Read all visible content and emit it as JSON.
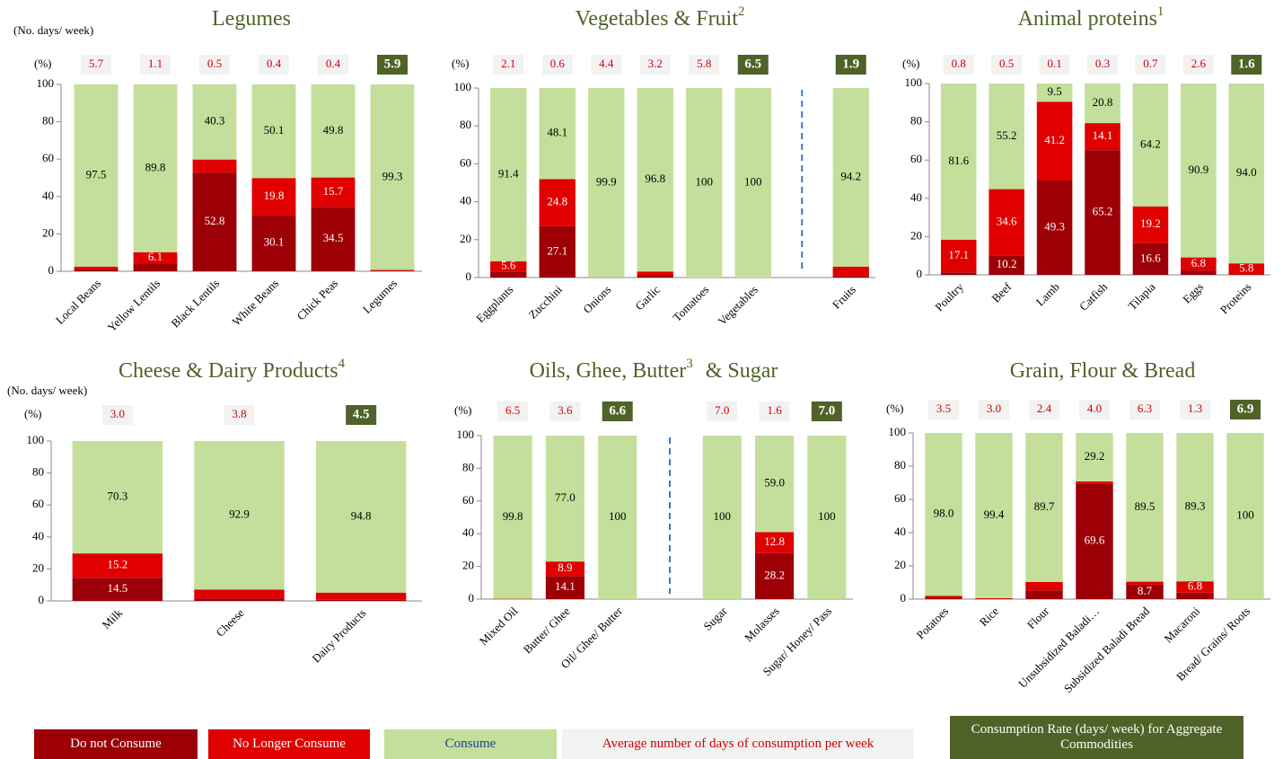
{
  "chart_data": [
    {
      "type": "stacked-bar",
      "title": "Legumes",
      "days_axis_label": "(No. days/ week)",
      "y_label": "(%)",
      "categories": [
        "Local Beans",
        "Yellow Lentils",
        "Black Lentils",
        "White Beans",
        "Chick Peas",
        "Legumes"
      ],
      "days": [
        "5.7",
        "1.1",
        "0.5",
        "0.4",
        "0.4",
        "5.9"
      ],
      "aggregate": [
        false,
        false,
        false,
        false,
        false,
        true
      ],
      "series": [
        {
          "values": [
            1.0,
            4.1,
            52.8,
            30.1,
            34.5,
            0.3
          ],
          "value_labels": [
            null,
            null,
            "52.8",
            "30.1",
            "34.5",
            null
          ]
        },
        {
          "values": [
            1.5,
            6.1,
            7.0,
            19.8,
            15.7,
            0.4
          ],
          "value_labels": [
            null,
            "6.1",
            null,
            "19.8",
            "15.7",
            null
          ]
        },
        {
          "values": [
            97.5,
            89.8,
            40.3,
            50.1,
            49.8,
            99.3
          ],
          "value_labels": [
            "97.5",
            "89.8",
            "40.3",
            "50.1",
            "49.8",
            "99.3"
          ]
        }
      ],
      "ylim": [
        0,
        100
      ],
      "yticks": [
        0,
        20,
        40,
        60,
        80,
        100
      ]
    },
    {
      "type": "stacked-bar",
      "title": "Vegetables & Fruit",
      "title_sup": "2",
      "y_label": "(%)",
      "categories": [
        "Eggplants",
        "Zucchini",
        "Onions",
        "Garlic",
        "Tomatoes",
        "Vegetables",
        null,
        "Fruits"
      ],
      "days": [
        "2.1",
        "0.6",
        "4.4",
        "3.2",
        "5.8",
        "6.5",
        null,
        "1.9"
      ],
      "aggregate": [
        false,
        false,
        false,
        false,
        false,
        true,
        false,
        true
      ],
      "series": [
        {
          "values": [
            3.0,
            27.1,
            0,
            1.2,
            0,
            0,
            null,
            0.8
          ],
          "value_labels": [
            null,
            "27.1",
            null,
            null,
            null,
            null,
            null,
            null
          ]
        },
        {
          "values": [
            5.6,
            24.8,
            0.1,
            2.0,
            0,
            0,
            null,
            5.0
          ],
          "value_labels": [
            "5.6",
            "24.8",
            null,
            null,
            null,
            null,
            null,
            null
          ]
        },
        {
          "values": [
            91.4,
            48.1,
            99.9,
            96.8,
            100,
            100,
            null,
            94.2
          ],
          "value_labels": [
            "91.4",
            "48.1",
            "99.9",
            "96.8",
            "100",
            "100",
            null,
            "94.2"
          ]
        }
      ],
      "ylim": [
        0,
        100
      ],
      "yticks": [
        0,
        20,
        40,
        60,
        80,
        100
      ]
    },
    {
      "type": "stacked-bar",
      "title": "Animal proteins",
      "title_sup": "1",
      "y_label": "(%)",
      "categories": [
        "Poultry",
        "Beef",
        "Lamb",
        "Catfish",
        "Tilapia",
        "Eggs",
        "Proteins"
      ],
      "days": [
        "0.8",
        "0.5",
        "0.1",
        "0.3",
        "0.7",
        "2.6",
        "1.6"
      ],
      "aggregate": [
        false,
        false,
        false,
        false,
        false,
        false,
        true
      ],
      "series": [
        {
          "values": [
            1.3,
            10.2,
            49.3,
            65.2,
            16.6,
            2.3,
            0.2
          ],
          "value_labels": [
            null,
            "10.2",
            "49.3",
            "65.2",
            "16.6",
            null,
            null
          ]
        },
        {
          "values": [
            17.1,
            34.6,
            41.2,
            14.1,
            19.2,
            6.8,
            5.8
          ],
          "value_labels": [
            "17.1",
            "34.6",
            "41.2",
            "14.1",
            "19.2",
            "6.8",
            "5.8"
          ]
        },
        {
          "values": [
            81.6,
            55.2,
            9.5,
            20.8,
            64.2,
            90.9,
            94.0
          ],
          "value_labels": [
            "81.6",
            "55.2",
            "9.5",
            "20.8",
            "64.2",
            "90.9",
            "94.0"
          ]
        }
      ],
      "ylim": [
        0,
        100
      ],
      "yticks": [
        0,
        20,
        40,
        60,
        80,
        100
      ]
    },
    {
      "type": "stacked-bar",
      "title": "Cheese & Dairy Products",
      "title_sup": "4",
      "days_axis_label": "(No. days/ week)",
      "y_label": "(%)",
      "categories": [
        "Milk",
        "Cheese",
        "Dairy Products"
      ],
      "days": [
        "3.0",
        "3.8",
        "4.5"
      ],
      "aggregate": [
        false,
        false,
        true
      ],
      "series": [
        {
          "values": [
            14.5,
            1.6,
            0.7
          ],
          "value_labels": [
            "14.5",
            null,
            null
          ]
        },
        {
          "values": [
            15.2,
            5.5,
            4.5
          ],
          "value_labels": [
            "15.2",
            null,
            null
          ]
        },
        {
          "values": [
            70.3,
            92.9,
            94.8
          ],
          "value_labels": [
            "70.3",
            "92.9",
            "94.8"
          ]
        }
      ],
      "ylim": [
        0,
        100
      ],
      "yticks": [
        0,
        20,
        40,
        60,
        80,
        100
      ]
    },
    {
      "type": "stacked-bar",
      "title": "Oils, Ghee, Butter",
      "title_sup": "3",
      "title_suffix": "&  Sugar",
      "y_label": "(%)",
      "categories": [
        "Mixed Oil",
        "Butter/ Ghee",
        "Oil/ Ghee/ Butter",
        null,
        "Sugar",
        "Molasses",
        "Sugar/ Honey/ Pass"
      ],
      "days": [
        "6.5",
        "3.6",
        "6.6",
        null,
        "7.0",
        "1.6",
        "7.0"
      ],
      "aggregate": [
        false,
        false,
        true,
        false,
        false,
        false,
        true
      ],
      "series": [
        {
          "values": [
            0,
            14.1,
            0,
            null,
            0,
            28.2,
            0
          ],
          "value_labels": [
            null,
            "14.1",
            null,
            null,
            null,
            "28.2",
            null
          ]
        },
        {
          "values": [
            0.2,
            8.9,
            0,
            null,
            0,
            12.8,
            0
          ],
          "value_labels": [
            null,
            "8.9",
            null,
            null,
            null,
            "12.8",
            null
          ]
        },
        {
          "values": [
            99.8,
            77.0,
            100,
            null,
            100,
            59.0,
            100
          ],
          "value_labels": [
            "99.8",
            "77.0",
            "100",
            null,
            "100",
            "59.0",
            "100"
          ]
        }
      ],
      "ylim": [
        0,
        100
      ],
      "yticks": [
        0,
        20,
        40,
        60,
        80,
        100
      ]
    },
    {
      "type": "stacked-bar",
      "title": "Grain, Flour & Bread",
      "y_label": "(%)",
      "categories": [
        "Potatoes",
        "Rice",
        "Flour",
        "Unsubsidized Baladi…",
        "Subsidized Baladi Bread",
        "Macaroni",
        "Bread/ Grains/ Roots"
      ],
      "days": [
        "3.5",
        "3.0",
        "2.4",
        "4.0",
        "6.3",
        "1.3",
        "6.9"
      ],
      "aggregate": [
        false,
        false,
        false,
        false,
        false,
        false,
        true
      ],
      "series": [
        {
          "values": [
            0.8,
            0.2,
            5.3,
            69.6,
            8.7,
            3.9,
            0
          ],
          "value_labels": [
            null,
            null,
            null,
            "69.6",
            "8.7",
            null,
            null
          ]
        },
        {
          "values": [
            1.2,
            0.4,
            5.0,
            1.2,
            1.8,
            6.8,
            0
          ],
          "value_labels": [
            null,
            null,
            null,
            null,
            null,
            "6.8",
            null
          ]
        },
        {
          "values": [
            98.0,
            99.4,
            89.7,
            29.2,
            89.5,
            89.3,
            100
          ],
          "value_labels": [
            "98.0",
            "99.4",
            "89.7",
            "29.2",
            "89.5",
            "89.3",
            "100"
          ]
        }
      ],
      "ylim": [
        0,
        100
      ],
      "yticks": [
        0,
        20,
        40,
        60,
        80,
        100
      ]
    }
  ],
  "legend": [
    {
      "name": "Do not Consume",
      "color": "#9c0006",
      "text_color": "#ffffff"
    },
    {
      "name": "No Longer Consume",
      "color": "#e00000",
      "text_color": "#ffffff"
    },
    {
      "name": "Consume",
      "color": "#c3df9b",
      "text_color": "#1f3f8f"
    },
    {
      "name": "Average number of days of consumption per week",
      "color": "#f2f2f2",
      "text_color": "#d00000"
    },
    {
      "name": "Consumption Rate (days/ week) for Aggregate Commodities",
      "color": "#4f6228",
      "text_color": "#ffffff"
    }
  ]
}
